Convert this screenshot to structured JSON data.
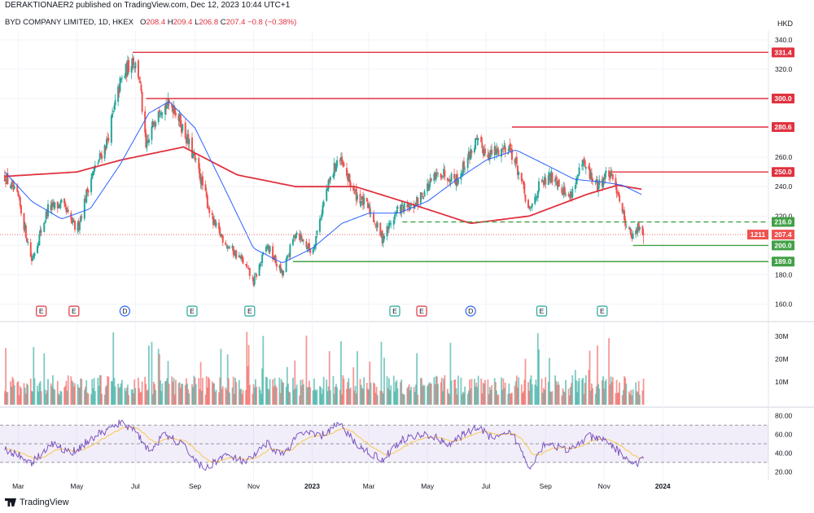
{
  "header": {
    "published": "DERAKTIONAER2 published on TradingView.com, Dec 12, 2023 10:44 UTC+1"
  },
  "symbol": {
    "name": "BYD COMPANY LIMITED, 1D, HKEX",
    "o_label": "O",
    "o": "208.4",
    "h_label": "H",
    "h": "209.4",
    "l_label": "L",
    "l": "206.8",
    "c_label": "C",
    "c": "207.4",
    "change": "−0.8 (−0.38%)"
  },
  "currency": "HKD",
  "footer": {
    "brand": "TradingView"
  },
  "colors": {
    "up": "#26a69a",
    "down": "#ef5350",
    "resistance": "#e0323f",
    "support": "#43a047",
    "ma200": "#e0323f",
    "ma50": "#2962ff",
    "rsi": "#7e57c2",
    "rsi_signal": "#f9c74f"
  },
  "chart_data": [
    {
      "type": "candlestick",
      "title": "BYD COMPANY LIMITED, 1D, HKEX",
      "x_ticks": [
        "Mar",
        "May",
        "Jul",
        "Sep",
        "Nov",
        "2023",
        "Mar",
        "May",
        "Jul",
        "Sep",
        "Nov",
        "2024"
      ],
      "y_ticks": [
        160.0,
        180.0,
        200.0,
        220.0,
        240.0,
        260.0,
        280.0,
        300.0,
        320.0,
        340.0
      ],
      "ylim": [
        152,
        346
      ],
      "last_price": 207.4,
      "symbol_tag": "1211",
      "levels": [
        {
          "value": 331.4,
          "label": "331.4",
          "kind": "resistance",
          "style": "solid"
        },
        {
          "value": 300.0,
          "label": "300.0",
          "kind": "resistance",
          "style": "solid"
        },
        {
          "value": 280.6,
          "label": "280.6",
          "kind": "resistance",
          "style": "solid"
        },
        {
          "value": 250.0,
          "label": "250.0",
          "kind": "resistance",
          "style": "solid"
        },
        {
          "value": 216.0,
          "label": "216.0",
          "kind": "support",
          "style": "dashed"
        },
        {
          "value": 200.0,
          "label": "200.0",
          "kind": "support",
          "style": "solid"
        },
        {
          "value": 189.0,
          "label": "189.0",
          "kind": "support",
          "style": "solid"
        }
      ],
      "price_path": [
        [
          "2022-02-15",
          247
        ],
        [
          "2022-03-01",
          232
        ],
        [
          "2022-03-15",
          190
        ],
        [
          "2022-04-01",
          225
        ],
        [
          "2022-04-15",
          228
        ],
        [
          "2022-05-01",
          210
        ],
        [
          "2022-05-15",
          245
        ],
        [
          "2022-06-01",
          270
        ],
        [
          "2022-06-15",
          310
        ],
        [
          "2022-06-28",
          328
        ],
        [
          "2022-07-05",
          315
        ],
        [
          "2022-07-12",
          265
        ],
        [
          "2022-07-25",
          295
        ],
        [
          "2022-08-10",
          295
        ],
        [
          "2022-08-25",
          270
        ],
        [
          "2022-09-05",
          250
        ],
        [
          "2022-09-20",
          215
        ],
        [
          "2022-10-05",
          200
        ],
        [
          "2022-10-20",
          190
        ],
        [
          "2022-11-01",
          175
        ],
        [
          "2022-11-15",
          200
        ],
        [
          "2022-12-01",
          180
        ],
        [
          "2022-12-15",
          210
        ],
        [
          "2023-01-01",
          195
        ],
        [
          "2023-01-15",
          235
        ],
        [
          "2023-01-28",
          260
        ],
        [
          "2023-02-15",
          235
        ],
        [
          "2023-03-01",
          225
        ],
        [
          "2023-03-15",
          205
        ],
        [
          "2023-04-01",
          225
        ],
        [
          "2023-04-15",
          225
        ],
        [
          "2023-05-01",
          240
        ],
        [
          "2023-05-15",
          250
        ],
        [
          "2023-06-01",
          245
        ],
        [
          "2023-06-20",
          270
        ],
        [
          "2023-07-05",
          262
        ],
        [
          "2023-07-25",
          268
        ],
        [
          "2023-08-05",
          248
        ],
        [
          "2023-08-15",
          222
        ],
        [
          "2023-08-25",
          240
        ],
        [
          "2023-09-10",
          248
        ],
        [
          "2023-09-25",
          232
        ],
        [
          "2023-10-10",
          255
        ],
        [
          "2023-10-25",
          240
        ],
        [
          "2023-11-05",
          250
        ],
        [
          "2023-11-15",
          238
        ],
        [
          "2023-11-22",
          218
        ],
        [
          "2023-12-01",
          205
        ],
        [
          "2023-12-08",
          214
        ],
        [
          "2023-12-12",
          207.4
        ]
      ],
      "ma200_path": [
        [
          "2022-02-15",
          247
        ],
        [
          "2022-05-01",
          250
        ],
        [
          "2022-06-15",
          258
        ],
        [
          "2022-08-20",
          267
        ],
        [
          "2022-10-15",
          248
        ],
        [
          "2022-12-15",
          240
        ],
        [
          "2023-02-15",
          240
        ],
        [
          "2023-04-15",
          228
        ],
        [
          "2023-06-15",
          215
        ],
        [
          "2023-08-15",
          220
        ],
        [
          "2023-10-15",
          235
        ],
        [
          "2023-11-15",
          241
        ],
        [
          "2023-12-12",
          238
        ]
      ],
      "ma50_path": [
        [
          "2022-02-15",
          250
        ],
        [
          "2022-03-15",
          230
        ],
        [
          "2022-04-15",
          218
        ],
        [
          "2022-05-15",
          225
        ],
        [
          "2022-06-15",
          255
        ],
        [
          "2022-07-15",
          290
        ],
        [
          "2022-08-05",
          298
        ],
        [
          "2022-09-01",
          280
        ],
        [
          "2022-10-01",
          240
        ],
        [
          "2022-11-01",
          198
        ],
        [
          "2022-12-01",
          188
        ],
        [
          "2023-01-01",
          198
        ],
        [
          "2023-02-01",
          215
        ],
        [
          "2023-03-01",
          222
        ],
        [
          "2023-04-01",
          222
        ],
        [
          "2023-05-01",
          230
        ],
        [
          "2023-06-01",
          245
        ],
        [
          "2023-07-01",
          258
        ],
        [
          "2023-08-01",
          265
        ],
        [
          "2023-09-01",
          255
        ],
        [
          "2023-10-01",
          245
        ],
        [
          "2023-11-01",
          243
        ],
        [
          "2023-11-20",
          241
        ],
        [
          "2023-12-12",
          234
        ]
      ],
      "events": [
        {
          "label": "E",
          "date": "2022-03-25",
          "kind": "earnings-negative"
        },
        {
          "label": "E",
          "date": "2022-04-28",
          "kind": "earnings-negative"
        },
        {
          "label": "D",
          "date": "2022-06-20",
          "kind": "dividend"
        },
        {
          "label": "E",
          "date": "2022-08-29",
          "kind": "earnings-positive"
        },
        {
          "label": "E",
          "date": "2022-10-28",
          "kind": "earnings-positive"
        },
        {
          "label": "E",
          "date": "2023-03-28",
          "kind": "earnings-positive"
        },
        {
          "label": "E",
          "date": "2023-04-25",
          "kind": "earnings-negative"
        },
        {
          "label": "D",
          "date": "2023-06-15",
          "kind": "dividend"
        },
        {
          "label": "E",
          "date": "2023-08-28",
          "kind": "earnings-positive"
        },
        {
          "label": "E",
          "date": "2023-10-30",
          "kind": "earnings-positive"
        }
      ]
    },
    {
      "type": "bar",
      "title": "Volume",
      "y_ticks": [
        "10M",
        "20M",
        "30M"
      ],
      "ylim": [
        0,
        34
      ],
      "unit": "M"
    },
    {
      "type": "line",
      "title": "RSI",
      "y_ticks": [
        20.0,
        40.0,
        60.0,
        80.0
      ],
      "ylim": [
        15,
        85
      ],
      "upper_band": 70,
      "lower_band": 30,
      "rsi_path": [
        [
          "2022-02-15",
          45
        ],
        [
          "2022-03-15",
          30
        ],
        [
          "2022-04-05",
          50
        ],
        [
          "2022-04-25",
          40
        ],
        [
          "2022-05-20",
          58
        ],
        [
          "2022-06-15",
          72
        ],
        [
          "2022-06-30",
          66
        ],
        [
          "2022-07-15",
          42
        ],
        [
          "2022-08-01",
          60
        ],
        [
          "2022-08-20",
          48
        ],
        [
          "2022-09-10",
          22
        ],
        [
          "2022-10-01",
          38
        ],
        [
          "2022-10-25",
          30
        ],
        [
          "2022-11-15",
          50
        ],
        [
          "2022-12-01",
          38
        ],
        [
          "2022-12-20",
          62
        ],
        [
          "2023-01-10",
          58
        ],
        [
          "2023-01-28",
          72
        ],
        [
          "2023-02-20",
          46
        ],
        [
          "2023-03-15",
          33
        ],
        [
          "2023-04-05",
          55
        ],
        [
          "2023-05-01",
          60
        ],
        [
          "2023-05-25",
          50
        ],
        [
          "2023-06-20",
          68
        ],
        [
          "2023-07-10",
          55
        ],
        [
          "2023-07-28",
          62
        ],
        [
          "2023-08-15",
          25
        ],
        [
          "2023-09-01",
          52
        ],
        [
          "2023-09-25",
          42
        ],
        [
          "2023-10-15",
          58
        ],
        [
          "2023-11-05",
          52
        ],
        [
          "2023-11-20",
          38
        ],
        [
          "2023-12-01",
          28
        ],
        [
          "2023-12-12",
          32
        ]
      ]
    }
  ]
}
